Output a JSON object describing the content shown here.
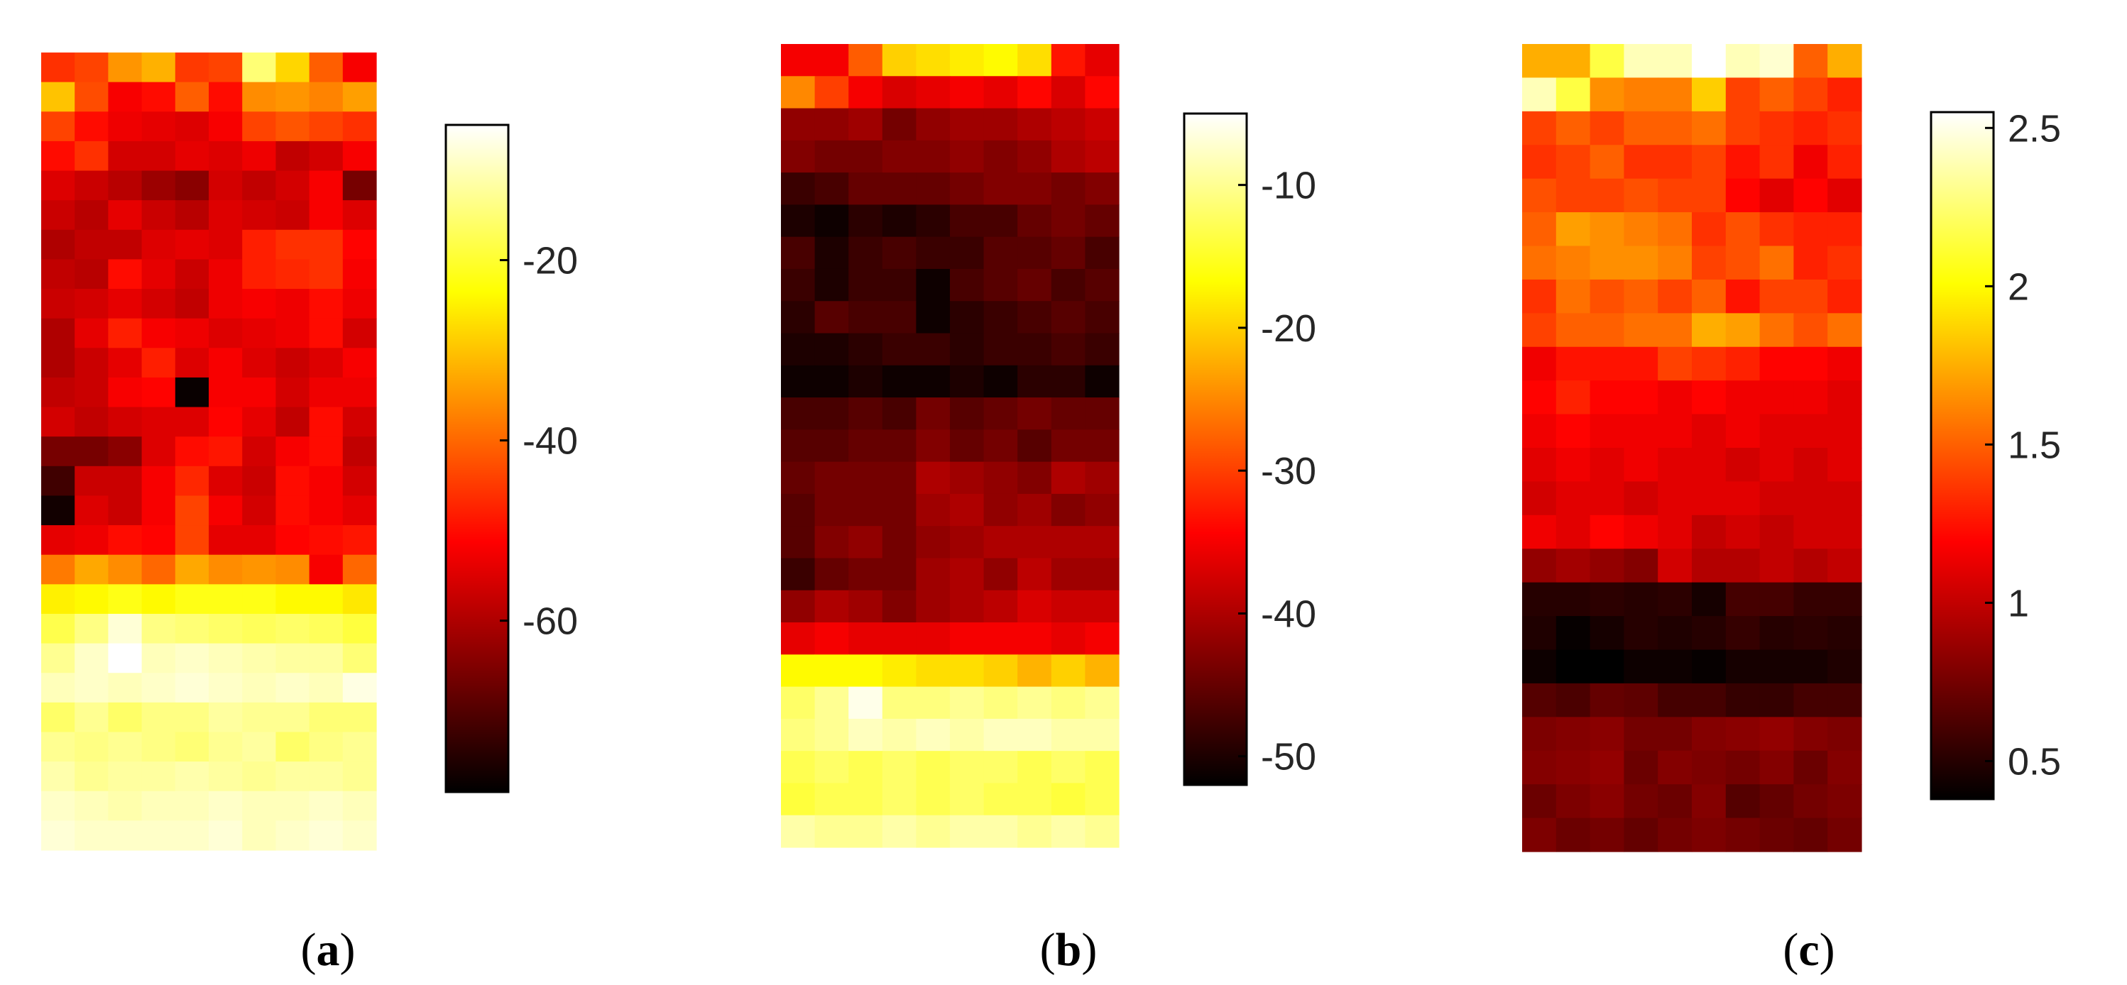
{
  "chart_data": [
    {
      "type": "heatmap",
      "panel_label": "a",
      "colormap": "hot",
      "colorbar": {
        "min": -79,
        "max": -5,
        "ticks": [
          -20,
          -40,
          -60
        ]
      },
      "rows": 27,
      "cols": 10,
      "values": [
        [
          -46,
          -44,
          -35,
          -32,
          -45,
          -44,
          -15,
          -28,
          -41,
          -52
        ],
        [
          -30,
          -43,
          -52,
          -50,
          -41,
          -50,
          -36,
          -35,
          -37,
          -34
        ],
        [
          -44,
          -50,
          -53,
          -54,
          -55,
          -52,
          -44,
          -42,
          -44,
          -46
        ],
        [
          -50,
          -46,
          -56,
          -56,
          -54,
          -55,
          -53,
          -58,
          -56,
          -52
        ],
        [
          -55,
          -57,
          -59,
          -62,
          -64,
          -56,
          -58,
          -56,
          -52,
          -66
        ],
        [
          -57,
          -59,
          -54,
          -57,
          -59,
          -55,
          -56,
          -57,
          -52,
          -55
        ],
        [
          -60,
          -58,
          -58,
          -55,
          -54,
          -55,
          -48,
          -46,
          -46,
          -51
        ],
        [
          -58,
          -59,
          -50,
          -54,
          -57,
          -53,
          -48,
          -47,
          -46,
          -52
        ],
        [
          -57,
          -56,
          -54,
          -56,
          -58,
          -53,
          -52,
          -53,
          -50,
          -53
        ],
        [
          -60,
          -54,
          -48,
          -52,
          -53,
          -55,
          -54,
          -53,
          -50,
          -56
        ],
        [
          -60,
          -57,
          -54,
          -48,
          -55,
          -52,
          -55,
          -57,
          -55,
          -52
        ],
        [
          -58,
          -57,
          -52,
          -51,
          -78,
          -52,
          -52,
          -56,
          -53,
          -53
        ],
        [
          -56,
          -58,
          -56,
          -55,
          -55,
          -51,
          -54,
          -58,
          -50,
          -56
        ],
        [
          -66,
          -66,
          -64,
          -55,
          -50,
          -49,
          -56,
          -52,
          -50,
          -58
        ],
        [
          -72,
          -57,
          -57,
          -52,
          -47,
          -55,
          -57,
          -50,
          -52,
          -56
        ],
        [
          -77,
          -55,
          -57,
          -52,
          -44,
          -52,
          -56,
          -50,
          -52,
          -54
        ],
        [
          -54,
          -53,
          -50,
          -51,
          -44,
          -54,
          -54,
          -51,
          -50,
          -49
        ],
        [
          -38,
          -33,
          -36,
          -40,
          -33,
          -36,
          -35,
          -36,
          -52,
          -40
        ],
        [
          -25,
          -24,
          -22,
          -24,
          -22,
          -22,
          -22,
          -24,
          -24,
          -26
        ],
        [
          -18,
          -14,
          -8,
          -14,
          -15,
          -16,
          -17,
          -16,
          -17,
          -19
        ],
        [
          -13,
          -9,
          -5,
          -10,
          -9,
          -10,
          -11,
          -12,
          -12,
          -15
        ],
        [
          -10,
          -9,
          -10,
          -9,
          -8,
          -9,
          -10,
          -9,
          -10,
          -7
        ],
        [
          -16,
          -13,
          -16,
          -14,
          -14,
          -12,
          -13,
          -13,
          -15,
          -15
        ],
        [
          -13,
          -14,
          -13,
          -14,
          -15,
          -13,
          -12,
          -16,
          -14,
          -13
        ],
        [
          -11,
          -13,
          -12,
          -12,
          -11,
          -12,
          -13,
          -12,
          -12,
          -13
        ],
        [
          -9,
          -10,
          -11,
          -10,
          -10,
          -9,
          -10,
          -10,
          -9,
          -10
        ],
        [
          -8,
          -9,
          -9,
          -9,
          -9,
          -8,
          -10,
          -9,
          -8,
          -9
        ]
      ]
    },
    {
      "type": "heatmap",
      "panel_label": "b",
      "colormap": "hot",
      "colorbar": {
        "min": -52,
        "max": -5,
        "ticks": [
          -10,
          -20,
          -30,
          -40,
          -50
        ]
      },
      "rows": 25,
      "cols": 10,
      "values": [
        [
          -35,
          -35,
          -28,
          -20,
          -19,
          -18,
          -17,
          -19,
          -33,
          -36
        ],
        [
          -25,
          -30,
          -35,
          -37,
          -36,
          -35,
          -36,
          -34,
          -37,
          -34
        ],
        [
          -42,
          -42,
          -41,
          -44,
          -42,
          -41,
          -41,
          -40,
          -39,
          -38
        ],
        [
          -43,
          -44,
          -44,
          -43,
          -43,
          -42,
          -43,
          -42,
          -40,
          -39
        ],
        [
          -48,
          -47,
          -45,
          -45,
          -45,
          -44,
          -43,
          -43,
          -44,
          -43
        ],
        [
          -50,
          -51,
          -49,
          -50,
          -49,
          -47,
          -47,
          -45,
          -44,
          -45
        ],
        [
          -47,
          -50,
          -48,
          -47,
          -48,
          -48,
          -46,
          -46,
          -45,
          -47
        ],
        [
          -48,
          -50,
          -48,
          -48,
          -51,
          -47,
          -46,
          -45,
          -47,
          -46
        ],
        [
          -49,
          -46,
          -47,
          -47,
          -51,
          -49,
          -48,
          -47,
          -46,
          -47
        ],
        [
          -50,
          -50,
          -49,
          -48,
          -48,
          -49,
          -48,
          -48,
          -47,
          -48
        ],
        [
          -51,
          -51,
          -50,
          -51,
          -51,
          -50,
          -51,
          -49,
          -49,
          -51
        ],
        [
          -47,
          -47,
          -46,
          -47,
          -44,
          -46,
          -45,
          -44,
          -45,
          -45
        ],
        [
          -46,
          -46,
          -45,
          -45,
          -43,
          -45,
          -44,
          -46,
          -44,
          -44
        ],
        [
          -45,
          -44,
          -44,
          -44,
          -40,
          -41,
          -42,
          -43,
          -40,
          -41
        ],
        [
          -46,
          -44,
          -44,
          -44,
          -41,
          -40,
          -42,
          -41,
          -43,
          -42
        ],
        [
          -46,
          -43,
          -42,
          -44,
          -42,
          -41,
          -40,
          -40,
          -40,
          -40
        ],
        [
          -48,
          -45,
          -44,
          -44,
          -41,
          -40,
          -42,
          -39,
          -41,
          -41
        ],
        [
          -42,
          -40,
          -41,
          -43,
          -41,
          -40,
          -39,
          -37,
          -38,
          -38
        ],
        [
          -36,
          -35,
          -36,
          -36,
          -36,
          -35,
          -35,
          -35,
          -36,
          -35
        ],
        [
          -17,
          -17,
          -17,
          -18,
          -19,
          -19,
          -20,
          -22,
          -20,
          -22
        ],
        [
          -12,
          -10,
          -6,
          -11,
          -11,
          -10,
          -11,
          -10,
          -11,
          -10
        ],
        [
          -11,
          -10,
          -8,
          -9,
          -8,
          -9,
          -8,
          -8,
          -9,
          -9
        ],
        [
          -13,
          -12,
          -13,
          -12,
          -13,
          -12,
          -12,
          -13,
          -12,
          -13
        ],
        [
          -14,
          -13,
          -13,
          -12,
          -13,
          -12,
          -13,
          -13,
          -14,
          -13
        ],
        [
          -9,
          -10,
          -10,
          -9,
          -10,
          -9,
          -9,
          -10,
          -9,
          -10
        ]
      ]
    },
    {
      "type": "heatmap",
      "panel_label": "c",
      "colormap": "hot",
      "colorbar": {
        "min": 0.38,
        "max": 2.55,
        "ticks": [
          2.5,
          2,
          1.5,
          1,
          0.5
        ]
      },
      "rows": 24,
      "cols": 10,
      "values": [
        [
          1.75,
          1.75,
          2.15,
          2.4,
          2.4,
          2.55,
          2.4,
          2.45,
          1.5,
          1.75
        ],
        [
          2.4,
          2.15,
          1.65,
          1.6,
          1.6,
          1.85,
          1.4,
          1.5,
          1.4,
          1.3
        ],
        [
          1.4,
          1.5,
          1.4,
          1.5,
          1.5,
          1.55,
          1.4,
          1.35,
          1.3,
          1.35
        ],
        [
          1.35,
          1.4,
          1.5,
          1.35,
          1.35,
          1.4,
          1.25,
          1.35,
          1.15,
          1.3
        ],
        [
          1.45,
          1.4,
          1.4,
          1.45,
          1.4,
          1.4,
          1.2,
          1.1,
          1.2,
          1.1
        ],
        [
          1.5,
          1.7,
          1.65,
          1.6,
          1.55,
          1.35,
          1.45,
          1.35,
          1.3,
          1.3
        ],
        [
          1.55,
          1.6,
          1.65,
          1.65,
          1.6,
          1.4,
          1.45,
          1.55,
          1.3,
          1.35
        ],
        [
          1.35,
          1.55,
          1.45,
          1.5,
          1.4,
          1.5,
          1.25,
          1.4,
          1.4,
          1.3
        ],
        [
          1.4,
          1.5,
          1.5,
          1.55,
          1.55,
          1.75,
          1.7,
          1.55,
          1.45,
          1.55
        ],
        [
          1.15,
          1.25,
          1.25,
          1.25,
          1.4,
          1.35,
          1.3,
          1.2,
          1.2,
          1.15
        ],
        [
          1.2,
          1.3,
          1.2,
          1.2,
          1.15,
          1.2,
          1.15,
          1.15,
          1.15,
          1.1
        ],
        [
          1.15,
          1.2,
          1.15,
          1.15,
          1.15,
          1.1,
          1.15,
          1.1,
          1.1,
          1.1
        ],
        [
          1.1,
          1.15,
          1.1,
          1.15,
          1.1,
          1.1,
          1.05,
          1.1,
          1.05,
          1.1
        ],
        [
          1.05,
          1.1,
          1.1,
          1.05,
          1.1,
          1.1,
          1.1,
          1.05,
          1.05,
          1.05
        ],
        [
          1.15,
          1.1,
          1.2,
          1.15,
          1.1,
          1.0,
          1.05,
          1.0,
          1.05,
          1.05
        ],
        [
          0.85,
          0.9,
          0.85,
          0.8,
          1.05,
          0.95,
          0.95,
          1.0,
          0.95,
          1.0
        ],
        [
          0.5,
          0.5,
          0.52,
          0.5,
          0.52,
          0.45,
          0.6,
          0.6,
          0.55,
          0.55
        ],
        [
          0.48,
          0.4,
          0.45,
          0.5,
          0.48,
          0.5,
          0.55,
          0.5,
          0.52,
          0.5
        ],
        [
          0.42,
          0.38,
          0.38,
          0.42,
          0.42,
          0.4,
          0.45,
          0.45,
          0.45,
          0.48
        ],
        [
          0.65,
          0.62,
          0.7,
          0.68,
          0.6,
          0.6,
          0.55,
          0.55,
          0.6,
          0.6
        ],
        [
          0.78,
          0.8,
          0.82,
          0.75,
          0.75,
          0.8,
          0.82,
          0.85,
          0.8,
          0.78
        ],
        [
          0.8,
          0.82,
          0.85,
          0.72,
          0.8,
          0.78,
          0.75,
          0.8,
          0.72,
          0.8
        ],
        [
          0.72,
          0.78,
          0.82,
          0.75,
          0.72,
          0.8,
          0.65,
          0.7,
          0.75,
          0.78
        ],
        [
          0.78,
          0.72,
          0.75,
          0.7,
          0.75,
          0.78,
          0.75,
          0.72,
          0.7,
          0.75
        ]
      ]
    }
  ]
}
